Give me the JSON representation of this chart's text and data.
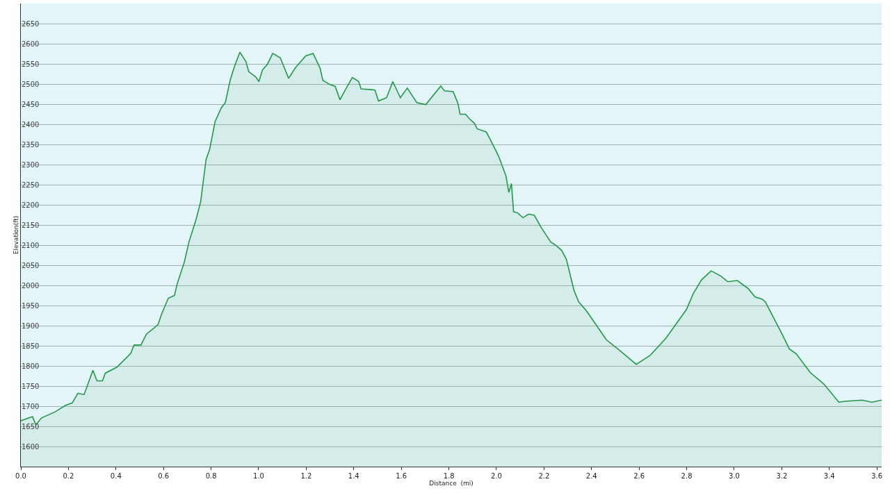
{
  "chart_data": {
    "type": "area",
    "xlabel": "Distance  (mi)",
    "ylabel": "Elevation(ft)",
    "x": [
      0,
      0.049,
      0.063,
      0.087,
      0.144,
      0.188,
      0.216,
      0.24,
      0.266,
      0.303,
      0.32,
      0.343,
      0.355,
      0.404,
      0.462,
      0.476,
      0.505,
      0.528,
      0.56,
      0.577,
      0.592,
      0.62,
      0.646,
      0.658,
      0.687,
      0.707,
      0.736,
      0.756,
      0.779,
      0.794,
      0.817,
      0.843,
      0.86,
      0.88,
      0.898,
      0.921,
      0.947,
      0.958,
      0.987,
      1.001,
      1.016,
      1.036,
      1.059,
      1.091,
      1.126,
      1.154,
      1.198,
      1.229,
      1.258,
      1.27,
      1.299,
      1.322,
      1.342,
      1.362,
      1.394,
      1.42,
      1.431,
      1.475,
      1.489,
      1.504,
      1.538,
      1.564,
      1.596,
      1.625,
      1.665,
      1.703,
      1.766,
      1.781,
      1.818,
      1.838,
      1.847,
      1.87,
      1.884,
      1.908,
      1.919,
      1.957,
      1.977,
      2.009,
      2.04,
      2.052,
      2.063,
      2.072,
      2.089,
      2.112,
      2.135,
      2.159,
      2.187,
      2.228,
      2.251,
      2.274,
      2.294,
      2.326,
      2.346,
      2.378,
      2.41,
      2.462,
      2.511,
      2.588,
      2.646,
      2.713,
      2.799,
      2.828,
      2.863,
      2.903,
      2.944,
      2.973,
      3.013,
      3.059,
      3.088,
      3.117,
      3.131,
      3.203,
      3.232,
      3.261,
      3.319,
      3.377,
      3.44,
      3.463,
      3.538,
      3.579,
      3.62
    ],
    "series": [
      {
        "color": "#23974a",
        "values": [
          1664,
          1674,
          1654,
          1671,
          1686,
          1702,
          1708,
          1732,
          1729,
          1789,
          1763,
          1763,
          1782,
          1797,
          1831,
          1852,
          1852,
          1879,
          1894,
          1903,
          1929,
          1968,
          1975,
          2005,
          2057,
          2108,
          2162,
          2207,
          2313,
          2338,
          2407,
          2441,
          2454,
          2509,
          2543,
          2579,
          2555,
          2531,
          2518,
          2506,
          2535,
          2548,
          2576,
          2565,
          2514,
          2540,
          2570,
          2576,
          2540,
          2509,
          2499,
          2494,
          2461,
          2483,
          2516,
          2507,
          2488,
          2486,
          2485,
          2458,
          2466,
          2506,
          2466,
          2490,
          2454,
          2449,
          2495,
          2483,
          2481,
          2452,
          2425,
          2425,
          2415,
          2402,
          2389,
          2381,
          2359,
          2321,
          2272,
          2231,
          2253,
          2183,
          2180,
          2168,
          2177,
          2174,
          2145,
          2108,
          2099,
          2087,
          2065,
          1988,
          1959,
          1937,
          1910,
          1865,
          1842,
          1804,
          1826,
          1869,
          1940,
          1980,
          2014,
          2036,
          2023,
          2009,
          2012,
          1992,
          1971,
          1966,
          1959,
          1877,
          1842,
          1830,
          1784,
          1755,
          1710,
          1712,
          1715,
          1710,
          1715
        ]
      }
    ],
    "xlim": [
      0,
      3.62
    ],
    "ylim": [
      1550,
      2700
    ],
    "xticks": [
      {
        "value": 0,
        "label": "0.0"
      },
      0.2,
      0.4,
      0.6,
      0.8,
      {
        "value": 1,
        "label": "1.0"
      },
      1.2,
      1.4,
      1.6,
      1.8,
      {
        "value": 2,
        "label": "2.0"
      },
      2.2,
      2.4,
      2.6,
      2.8,
      {
        "value": 3,
        "label": "3.0"
      },
      3.2,
      3.4,
      3.6
    ],
    "yticks": [
      1600,
      1650,
      1700,
      1750,
      1800,
      1850,
      1900,
      1950,
      2000,
      2050,
      2100,
      2150,
      2200,
      2250,
      2300,
      2350,
      2400,
      2450,
      2500,
      2550,
      2600,
      2650
    ],
    "grid": "y"
  }
}
